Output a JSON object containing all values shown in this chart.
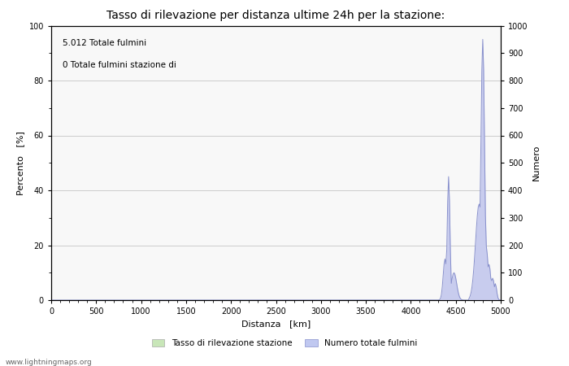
{
  "title": "Tasso di rilevazione per distanza ultime 24h per la stazione:",
  "annotation_line1": "5.012 Totale fulmini",
  "annotation_line2": "0 Totale fulmini stazione di",
  "xlabel": "Distanza   [km]",
  "ylabel_left": "Percento   [%]",
  "ylabel_right": "Numero",
  "xlim": [
    0,
    5000
  ],
  "ylim_left": [
    0,
    100
  ],
  "ylim_right": [
    0,
    1000
  ],
  "xticks": [
    0,
    500,
    1000,
    1500,
    2000,
    2500,
    3000,
    3500,
    4000,
    4500,
    5000
  ],
  "yticks_left": [
    0,
    20,
    40,
    60,
    80,
    100
  ],
  "yticks_right": [
    0,
    100,
    200,
    300,
    400,
    500,
    600,
    700,
    800,
    900,
    1000
  ],
  "legend_label_green": "Tasso di rilevazione stazione",
  "legend_label_blue": "Numero totale fulmini",
  "legend_color_green": "#c8e6b8",
  "legend_color_blue": "#c0c8f0",
  "line_color_blue": "#8890cc",
  "fill_color_blue": "#c8ccee",
  "background_color": "#ffffff",
  "plot_bg_color": "#f8f8f8",
  "grid_color": "#cccccc",
  "watermark": "www.lightningmaps.org",
  "title_fontsize": 10,
  "axis_label_fontsize": 8,
  "tick_fontsize": 7,
  "annotation_fontsize": 7.5
}
